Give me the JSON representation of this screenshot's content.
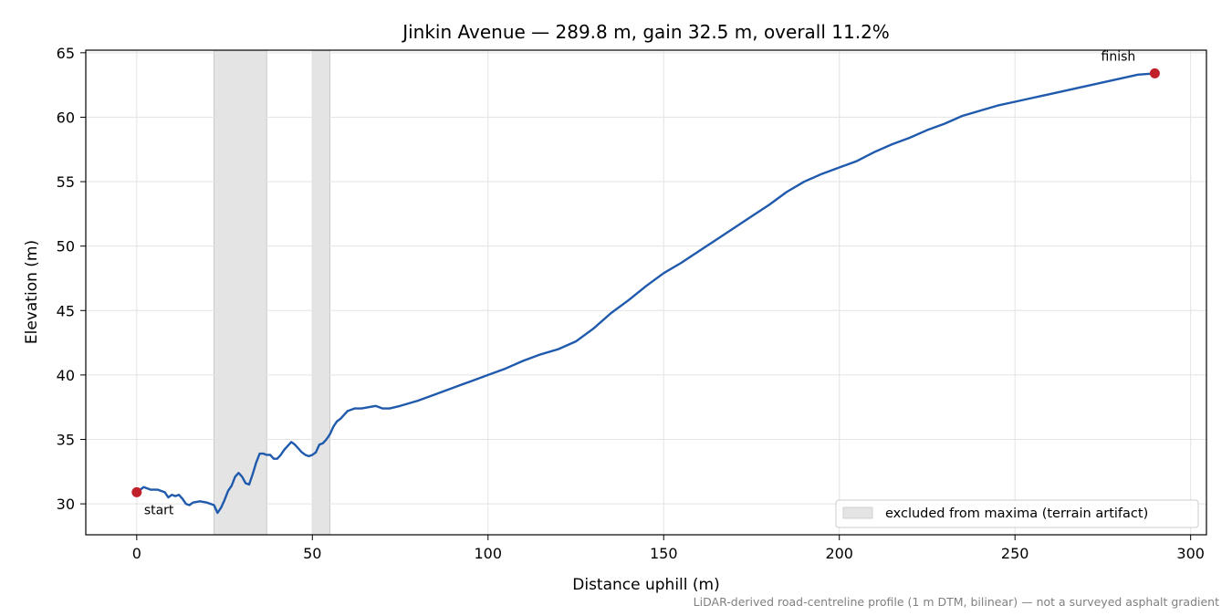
{
  "chart_data": {
    "type": "line",
    "title": "Jinkin Avenue — 289.8 m, gain 32.5 m, overall 11.2%",
    "xlabel": "Distance uphill (m)",
    "ylabel": "Elevation (m)",
    "xlim": [
      -14.5,
      304.5
    ],
    "ylim": [
      27.6,
      65.2
    ],
    "xticks": [
      0,
      50,
      100,
      150,
      200,
      250,
      300
    ],
    "yticks": [
      30,
      35,
      40,
      45,
      50,
      55,
      60,
      65
    ],
    "grid": true,
    "legend_position": "lower-right",
    "line_color": "#1f5aad",
    "marker_color": "#c0202a",
    "shade_color": "#d9d9d9",
    "series": [
      {
        "x": [
          0,
          2,
          4,
          6,
          8,
          9,
          10,
          11,
          12,
          13,
          14,
          15,
          16,
          18,
          20,
          22,
          23,
          24,
          25,
          26,
          27,
          28,
          29,
          30,
          31,
          32,
          33,
          34,
          35,
          36,
          37,
          38,
          39,
          40,
          41,
          42,
          43,
          44,
          45,
          46,
          47,
          48,
          49,
          50,
          51,
          52,
          53,
          54,
          55,
          56,
          57,
          58,
          60,
          62,
          64,
          66,
          68,
          70,
          72,
          75,
          80,
          85,
          90,
          95,
          100,
          105,
          110,
          115,
          120,
          125,
          130,
          135,
          140,
          145,
          150,
          155,
          160,
          165,
          170,
          175,
          180,
          185,
          190,
          195,
          200,
          205,
          210,
          215,
          220,
          225,
          230,
          235,
          240,
          245,
          250,
          255,
          260,
          265,
          270,
          275,
          280,
          285,
          289.8
        ],
        "y": [
          30.9,
          31.3,
          31.1,
          31.1,
          30.9,
          30.5,
          30.7,
          30.6,
          30.7,
          30.4,
          30.0,
          29.9,
          30.1,
          30.2,
          30.1,
          29.9,
          29.3,
          29.7,
          30.3,
          31.0,
          31.4,
          32.1,
          32.4,
          32.1,
          31.6,
          31.5,
          32.3,
          33.2,
          33.9,
          33.9,
          33.8,
          33.8,
          33.5,
          33.5,
          33.8,
          34.2,
          34.5,
          34.8,
          34.6,
          34.3,
          34.0,
          33.8,
          33.7,
          33.8,
          34.0,
          34.6,
          34.7,
          35.0,
          35.4,
          36.0,
          36.4,
          36.6,
          37.2,
          37.4,
          37.4,
          37.5,
          37.6,
          37.4,
          37.4,
          37.6,
          38.0,
          38.5,
          39.0,
          39.5,
          40.0,
          40.5,
          41.1,
          41.6,
          42.0,
          42.6,
          43.6,
          44.8,
          45.8,
          46.9,
          47.9,
          48.7,
          49.6,
          50.5,
          51.4,
          52.3,
          53.2,
          54.2,
          55.0,
          55.6,
          56.1,
          56.6,
          57.3,
          57.9,
          58.4,
          59.0,
          59.5,
          60.1,
          60.5,
          60.9,
          61.2,
          61.5,
          61.8,
          62.1,
          62.4,
          62.7,
          63.0,
          63.3,
          63.4
        ]
      }
    ],
    "excluded_ranges": [
      [
        22,
        37
      ],
      [
        50,
        55
      ]
    ],
    "annotations": [
      {
        "label": "start",
        "x": 0,
        "y": 30.9
      },
      {
        "label": "finish",
        "x": 289.8,
        "y": 63.4
      }
    ],
    "legend_entries": [
      "excluded from maxima (terrain artifact)"
    ],
    "footnote": "LiDAR-derived road-centreline profile (1 m DTM, bilinear) — not a surveyed asphalt gradient"
  }
}
